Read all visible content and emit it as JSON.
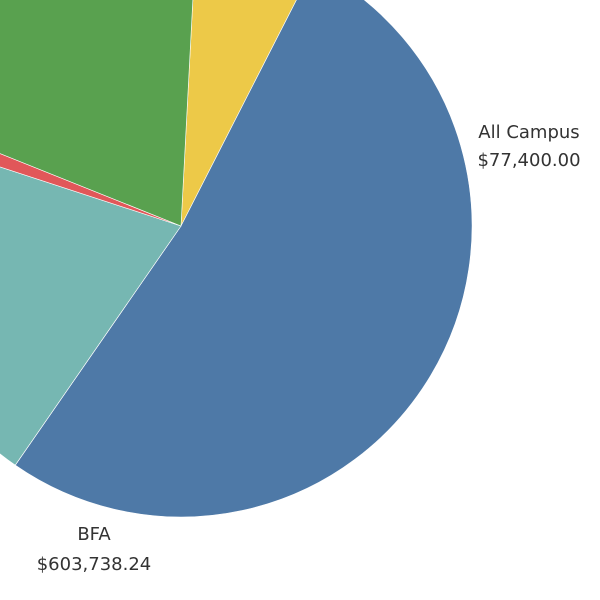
{
  "chart_data": {
    "type": "pie",
    "slices": [
      {
        "label": "All Campus",
        "value": 77400.0,
        "value_label": "$77,400.00",
        "color": "#EDC948",
        "label_shown": true
      },
      {
        "label": "BFA",
        "value": 603738.24,
        "value_label": "$603,738.24",
        "color": "#4E79A7",
        "label_shown": true
      },
      {
        "label": "",
        "value": 0.5,
        "color": "#E15759",
        "label_shown": false
      },
      {
        "label": "",
        "value": 236000,
        "color": "#76B7B2",
        "label_shown": false
      },
      {
        "label": "",
        "value": 12000,
        "color": "#E15759",
        "label_shown": false
      },
      {
        "label": "",
        "value": 229000,
        "color": "#59A14F",
        "label_shown": false
      }
    ],
    "start_angle_deg": 87,
    "direction": "clockwise",
    "title": "",
    "legend": "none"
  }
}
